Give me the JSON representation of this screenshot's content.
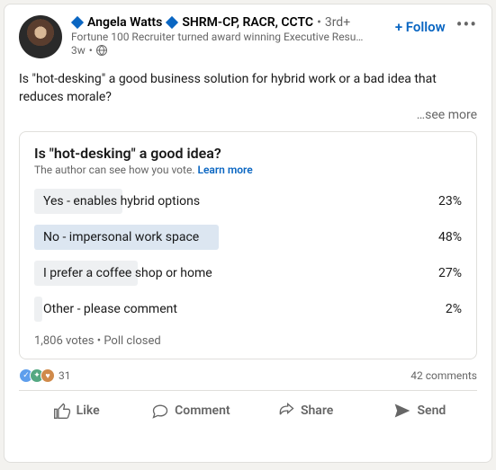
{
  "author": {
    "name": "Angela Watts",
    "credentials": "SHRM-CP, RACR, CCTC",
    "degree": "3rd+",
    "headline": "Fortune 100 Recruiter turned award winning Executive Resu…",
    "time": "3w",
    "visibility_icon": "globe-icon"
  },
  "header": {
    "follow_label": "+ Follow"
  },
  "post": {
    "text": "Is \"hot-desking\" a good business solution for hybrid work or a bad idea that reduces morale?",
    "see_more": "…see more"
  },
  "poll": {
    "title": "Is \"hot-desking\" a good idea?",
    "subtitle_prefix": "The author can see how you vote. ",
    "learn_more": "Learn more",
    "bar_default_color": "#eef0f2",
    "bar_highlight_color": "#dce6f1",
    "options": [
      {
        "label": "Yes - enables hybrid options",
        "pct": 23,
        "highlight": false
      },
      {
        "label": "No - impersonal work space",
        "pct": 48,
        "highlight": true
      },
      {
        "label": "I prefer a coffee shop or home",
        "pct": 27,
        "highlight": false
      },
      {
        "label": "Other - please comment",
        "pct": 2,
        "highlight": false
      }
    ],
    "meta": "1,806 votes • Poll closed"
  },
  "social": {
    "reaction_icons": [
      {
        "bg": "#5e9eec",
        "glyph": "✓"
      },
      {
        "bg": "#54a882",
        "glyph": "✦"
      },
      {
        "bg": "#d08a4a",
        "glyph": "♥"
      }
    ],
    "reaction_count": "31",
    "comments": "42 comments"
  },
  "actions": {
    "like": "Like",
    "comment": "Comment",
    "share": "Share",
    "send": "Send"
  }
}
